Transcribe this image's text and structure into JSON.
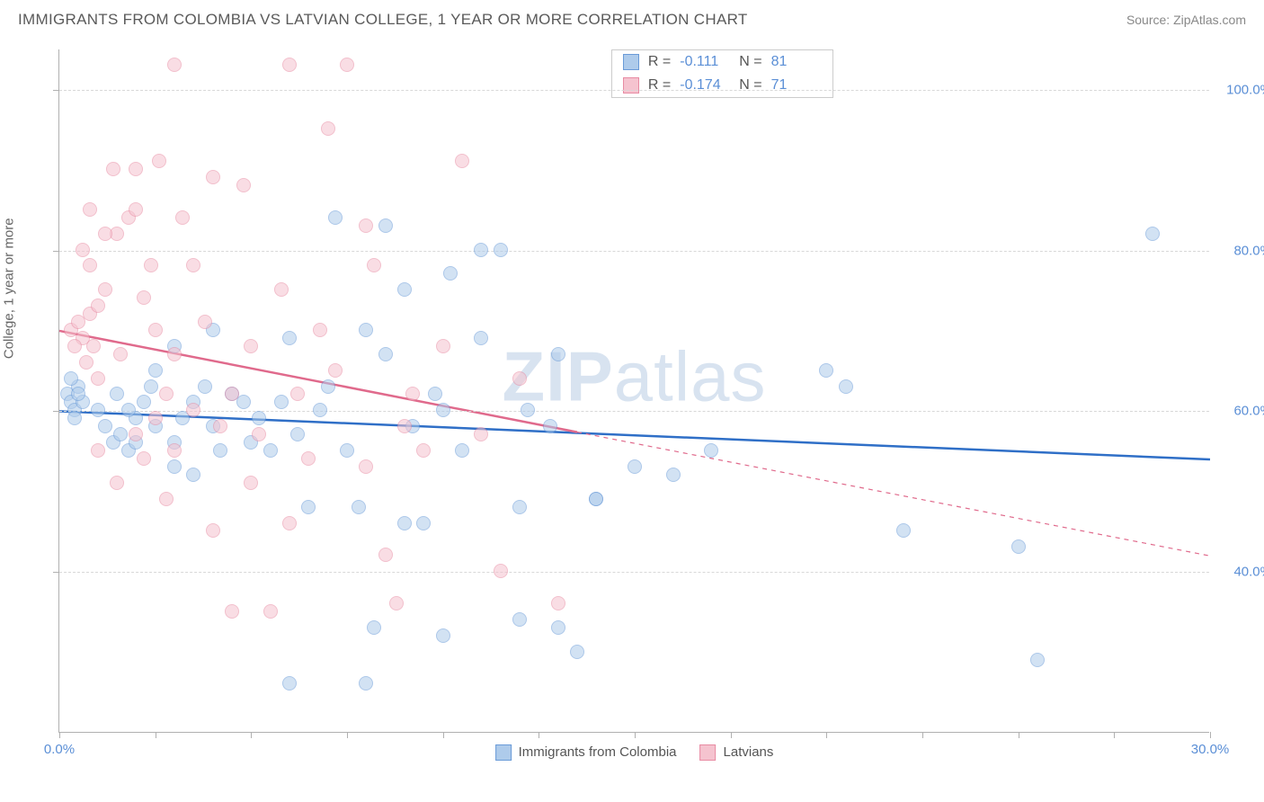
{
  "title": "IMMIGRANTS FROM COLOMBIA VS LATVIAN COLLEGE, 1 YEAR OR MORE CORRELATION CHART",
  "source": "Source: ZipAtlas.com",
  "ylabel": "College, 1 year or more",
  "watermark_bold": "ZIP",
  "watermark_light": "atlas",
  "chart": {
    "type": "scatter",
    "background_color": "#ffffff",
    "grid_color": "#d8d8d8",
    "axis_color": "#b0b0b0",
    "tick_label_color": "#5b8fd6",
    "xlim": [
      0,
      30
    ],
    "ylim": [
      20,
      105
    ],
    "xticks": [
      0,
      2.5,
      5,
      7.5,
      10,
      12.5,
      15,
      17.5,
      20,
      22.5,
      25,
      27.5,
      30
    ],
    "xtick_labels": {
      "0": "0.0%",
      "30": "30.0%"
    },
    "yticks": [
      40,
      60,
      80,
      100
    ],
    "ytick_labels": {
      "40": "40.0%",
      "60": "60.0%",
      "80": "80.0%",
      "100": "100.0%"
    },
    "marker_radius": 8,
    "marker_opacity": 0.55,
    "line_width": 2.5
  },
  "series": [
    {
      "name": "Immigrants from Colombia",
      "color_fill": "#aecbeb",
      "color_stroke": "#6a9bd8",
      "line_color": "#2f6fc7",
      "R": "-0.111",
      "N": "81",
      "trend": {
        "x1": 0,
        "y1": 60,
        "x2": 30,
        "y2": 54,
        "solid_until_x": 30
      },
      "points": [
        [
          0.2,
          62
        ],
        [
          0.3,
          61
        ],
        [
          0.4,
          60
        ],
        [
          0.5,
          63
        ],
        [
          0.4,
          59
        ],
        [
          0.6,
          61
        ],
        [
          0.3,
          64
        ],
        [
          0.5,
          62
        ],
        [
          1.0,
          60
        ],
        [
          1.2,
          58
        ],
        [
          1.4,
          56
        ],
        [
          1.6,
          57
        ],
        [
          1.8,
          55
        ],
        [
          2.0,
          59
        ],
        [
          2.2,
          61
        ],
        [
          2.4,
          63
        ],
        [
          1.5,
          62
        ],
        [
          1.8,
          60
        ],
        [
          2.0,
          56
        ],
        [
          2.5,
          58
        ],
        [
          3.0,
          56
        ],
        [
          3.2,
          59
        ],
        [
          3.5,
          61
        ],
        [
          3.8,
          63
        ],
        [
          4.0,
          58
        ],
        [
          4.2,
          55
        ],
        [
          4.5,
          62
        ],
        [
          3.0,
          53
        ],
        [
          3.5,
          52
        ],
        [
          4.8,
          61
        ],
        [
          5.0,
          56
        ],
        [
          5.2,
          59
        ],
        [
          5.5,
          55
        ],
        [
          5.8,
          61
        ],
        [
          6.0,
          69
        ],
        [
          6.2,
          57
        ],
        [
          6.5,
          48
        ],
        [
          6.8,
          60
        ],
        [
          7.0,
          63
        ],
        [
          7.2,
          84
        ],
        [
          7.5,
          55
        ],
        [
          7.8,
          48
        ],
        [
          8.0,
          70
        ],
        [
          8.2,
          33
        ],
        [
          8.0,
          26
        ],
        [
          8.5,
          67
        ],
        [
          9.0,
          75
        ],
        [
          9.2,
          58
        ],
        [
          9.5,
          46
        ],
        [
          9.8,
          62
        ],
        [
          10.0,
          60
        ],
        [
          10.2,
          77
        ],
        [
          10.5,
          55
        ],
        [
          11.0,
          69
        ],
        [
          11.5,
          80
        ],
        [
          12.0,
          48
        ],
        [
          12.2,
          60
        ],
        [
          12.8,
          58
        ],
        [
          13.0,
          33
        ],
        [
          13.5,
          30
        ],
        [
          14.0,
          49
        ],
        [
          15.0,
          53
        ],
        [
          16.0,
          52
        ],
        [
          17.0,
          55
        ],
        [
          13.0,
          67
        ],
        [
          14.0,
          49
        ],
        [
          20.0,
          65
        ],
        [
          20.5,
          63
        ],
        [
          22.0,
          45
        ],
        [
          25.0,
          43
        ],
        [
          28.5,
          82
        ],
        [
          25.5,
          29
        ],
        [
          10.0,
          32
        ],
        [
          11.0,
          80
        ],
        [
          8.5,
          83
        ],
        [
          3.0,
          68
        ],
        [
          4.0,
          70
        ],
        [
          2.5,
          65
        ],
        [
          6.0,
          26
        ],
        [
          9.0,
          46
        ],
        [
          12.0,
          34
        ]
      ]
    },
    {
      "name": "Latvians",
      "color_fill": "#f5c3cf",
      "color_stroke": "#e88ba3",
      "line_color": "#e06a8c",
      "R": "-0.174",
      "N": "71",
      "trend": {
        "x1": 0,
        "y1": 70,
        "x2": 30,
        "y2": 42,
        "solid_until_x": 13.5
      },
      "points": [
        [
          0.3,
          70
        ],
        [
          0.5,
          71
        ],
        [
          0.6,
          69
        ],
        [
          0.8,
          72
        ],
        [
          0.4,
          68
        ],
        [
          0.7,
          66
        ],
        [
          0.9,
          68
        ],
        [
          1.0,
          73
        ],
        [
          0.6,
          80
        ],
        [
          0.8,
          78
        ],
        [
          1.0,
          64
        ],
        [
          1.2,
          75
        ],
        [
          1.5,
          82
        ],
        [
          1.8,
          84
        ],
        [
          2.0,
          85
        ],
        [
          1.4,
          90
        ],
        [
          1.6,
          67
        ],
        [
          2.2,
          74
        ],
        [
          2.4,
          78
        ],
        [
          2.6,
          91
        ],
        [
          2.8,
          62
        ],
        [
          3.0,
          103
        ],
        [
          1.0,
          55
        ],
        [
          1.5,
          51
        ],
        [
          2.0,
          57
        ],
        [
          2.2,
          54
        ],
        [
          2.5,
          59
        ],
        [
          2.8,
          49
        ],
        [
          3.0,
          55
        ],
        [
          3.2,
          84
        ],
        [
          3.5,
          60
        ],
        [
          3.8,
          71
        ],
        [
          4.0,
          89
        ],
        [
          4.2,
          58
        ],
        [
          4.5,
          62
        ],
        [
          4.8,
          88
        ],
        [
          5.0,
          68
        ],
        [
          5.2,
          57
        ],
        [
          5.5,
          35
        ],
        [
          5.8,
          75
        ],
        [
          6.0,
          46
        ],
        [
          6.2,
          62
        ],
        [
          6.5,
          54
        ],
        [
          6.8,
          70
        ],
        [
          7.0,
          95
        ],
        [
          7.2,
          65
        ],
        [
          7.5,
          103
        ],
        [
          8.0,
          83
        ],
        [
          8.2,
          78
        ],
        [
          8.5,
          42
        ],
        [
          8.8,
          36
        ],
        [
          9.0,
          58
        ],
        [
          9.2,
          62
        ],
        [
          9.5,
          55
        ],
        [
          10.0,
          68
        ],
        [
          10.5,
          91
        ],
        [
          4.0,
          45
        ],
        [
          4.5,
          35
        ],
        [
          6.0,
          103
        ],
        [
          3.5,
          78
        ],
        [
          2.0,
          90
        ],
        [
          1.2,
          82
        ],
        [
          0.8,
          85
        ],
        [
          11.0,
          57
        ],
        [
          11.5,
          40
        ],
        [
          12.0,
          64
        ],
        [
          13.0,
          36
        ],
        [
          8.0,
          53
        ],
        [
          5.0,
          51
        ],
        [
          3.0,
          67
        ],
        [
          2.5,
          70
        ]
      ]
    }
  ],
  "legend_bottom": [
    {
      "label": "Immigrants from Colombia",
      "fill": "#aecbeb",
      "stroke": "#6a9bd8"
    },
    {
      "label": "Latvians",
      "fill": "#f5c3cf",
      "stroke": "#e88ba3"
    }
  ],
  "stats_labels": {
    "R": "R =",
    "N": "N ="
  }
}
